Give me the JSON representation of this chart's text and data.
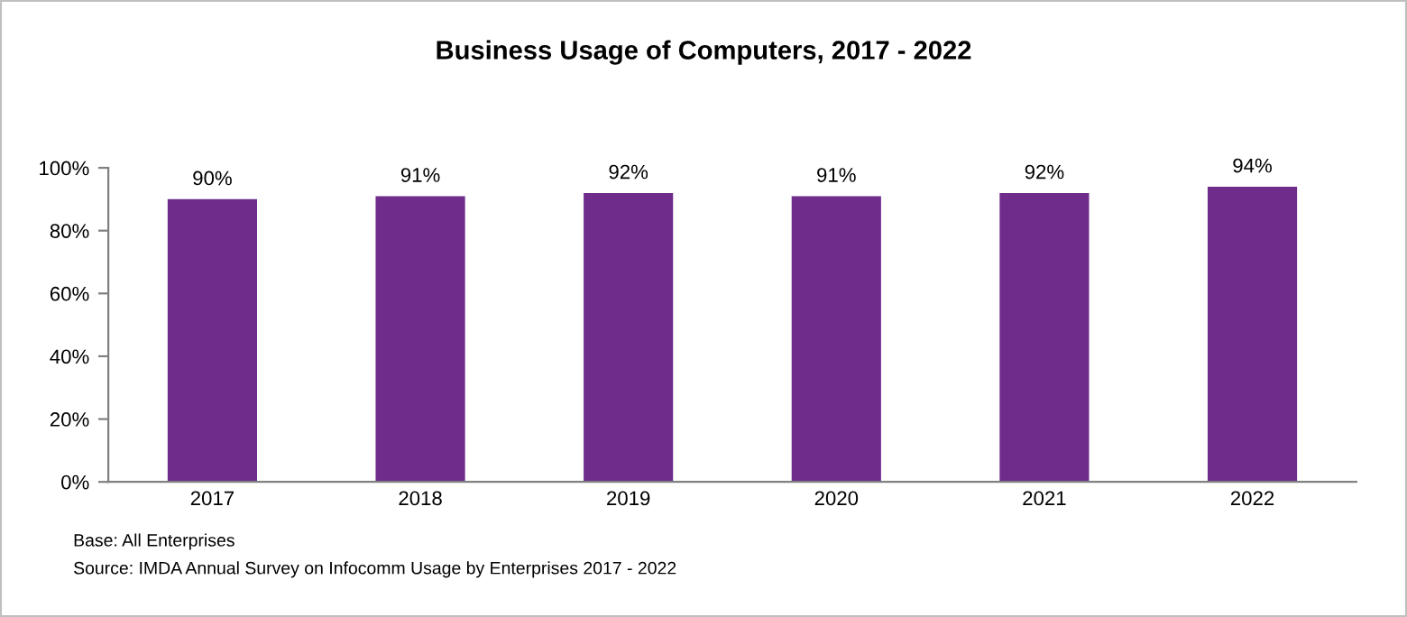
{
  "chart_data": {
    "type": "bar",
    "title": "Business Usage of Computers, 2017 - 2022",
    "categories": [
      "2017",
      "2018",
      "2019",
      "2020",
      "2021",
      "2022"
    ],
    "values": [
      90,
      91,
      92,
      91,
      92,
      94
    ],
    "value_labels": [
      "90%",
      "91%",
      "92%",
      "91%",
      "92%",
      "94%"
    ],
    "color": "#6f2c8b",
    "ylim": [
      0,
      100
    ],
    "yticks": [
      {
        "value": 0,
        "label": "0%"
      },
      {
        "value": 20,
        "label": "20%"
      },
      {
        "value": 40,
        "label": "40%"
      },
      {
        "value": 60,
        "label": "60%"
      },
      {
        "value": 80,
        "label": "80%"
      },
      {
        "value": 100,
        "label": "100%"
      }
    ],
    "grid": false,
    "legend": false,
    "annotations": [
      "Base: All Enterprises",
      "Source: IMDA Annual Survey on Infocomm Usage by Enterprises 2017 - 2022"
    ]
  }
}
